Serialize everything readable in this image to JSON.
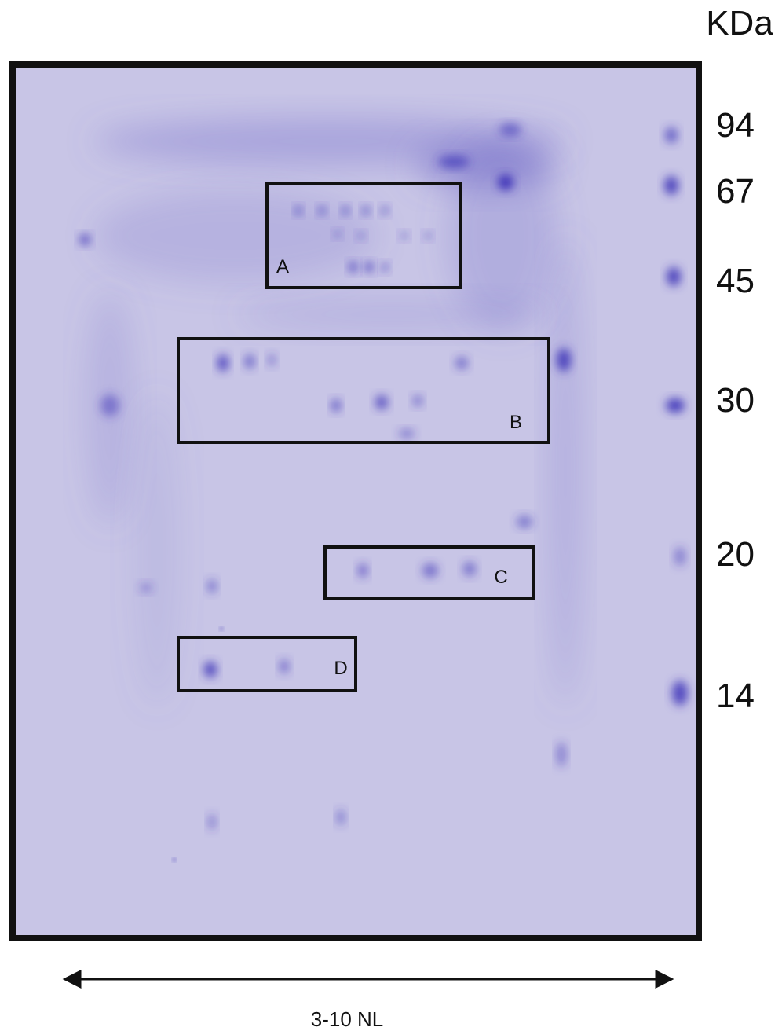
{
  "unit_label": "KDa",
  "markers": [
    "94",
    "67",
    "45",
    "30",
    "20",
    "14"
  ],
  "regions": [
    "A",
    "B",
    "C",
    "D"
  ],
  "axis_label": "3-10 NL"
}
